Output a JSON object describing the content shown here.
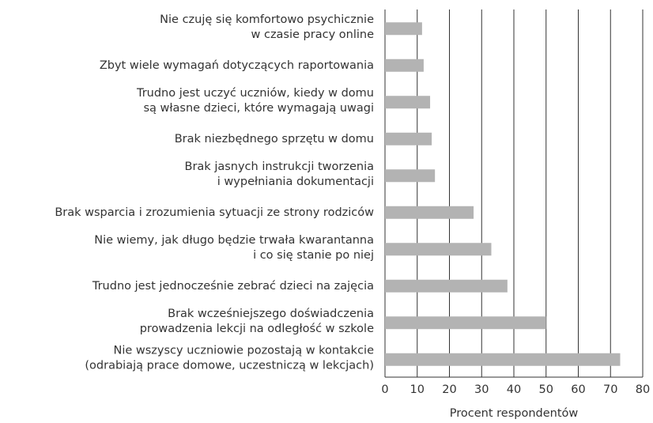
{
  "chart_data": {
    "type": "barh",
    "xlabel": "Procent respondentów",
    "categories": [
      [
        "Nie czuję się komfortowo psychicznie",
        "w czasie pracy online"
      ],
      [
        "Zbyt wiele wymagań dotyczących raportowania"
      ],
      [
        "Trudno jest uczyć uczniów, kiedy w domu",
        "są własne dzieci, które wymagają uwagi"
      ],
      [
        "Brak niezbędnego sprzętu w domu"
      ],
      [
        "Brak jasnych instrukcji tworzenia",
        "i wypełniania dokumentacji"
      ],
      [
        "Brak wsparcia i zrozumienia sytuacji ze strony rodziców"
      ],
      [
        "Nie wiemy, jak długo będzie trwała kwarantanna",
        "i co się stanie po niej"
      ],
      [
        "Trudno jest jednocześnie zebrać dzieci na zajęcia"
      ],
      [
        "Brak wcześniejszego doświadczenia",
        "prowadzenia lekcji na odległość w szkole"
      ],
      [
        "Nie wszyscy uczniowie pozostają w kontakcie",
        "(odrabiają prace domowe, uczestniczą w lekcjach)"
      ]
    ],
    "values": [
      11.5,
      12,
      14,
      14.5,
      15.5,
      27.5,
      33,
      38,
      50,
      73
    ],
    "color": "#b3b3b3",
    "xlim": [
      0,
      80
    ],
    "xticks": [
      0,
      10,
      20,
      30,
      40,
      50,
      60,
      70,
      80
    ],
    "grid": true
  }
}
